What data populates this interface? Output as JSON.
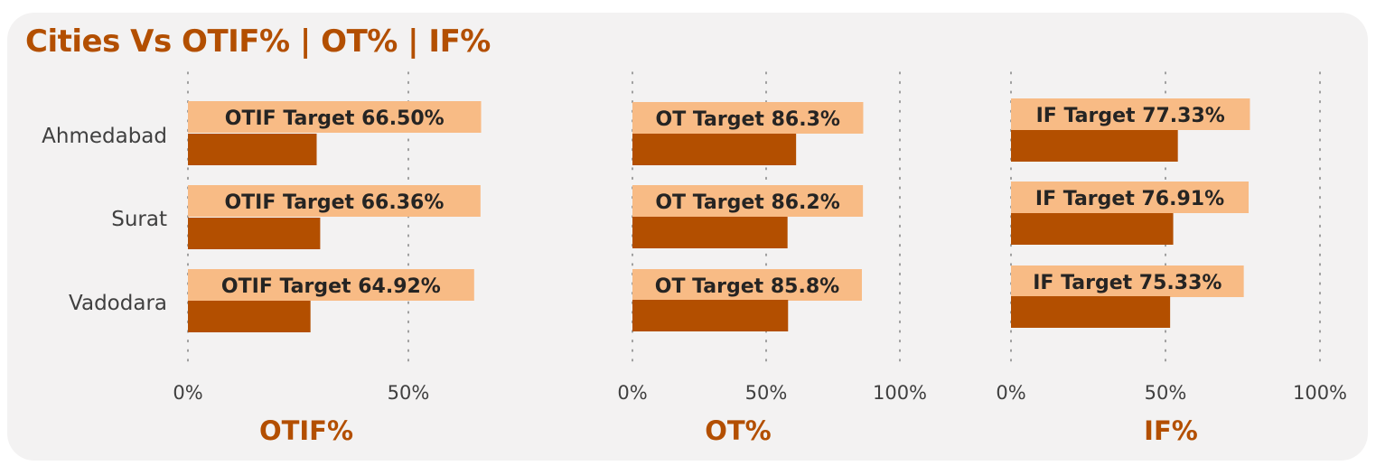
{
  "title": "Cities Vs OTIF% | OT% | IF%",
  "colors": {
    "accent": "#b34f00",
    "bar": "#b34f00",
    "target": "#f8bb85",
    "card": "#f3f2f2"
  },
  "chart_data": [
    {
      "type": "bar",
      "title": "OTIF%",
      "categories": [
        "Ahmedabad",
        "Surat",
        "Vadodara"
      ],
      "series": [
        {
          "name": "OTIF Target",
          "values": [
            66.5,
            66.36,
            64.92
          ],
          "labels": [
            "OTIF Target 66.50%",
            "OTIF Target 66.36%",
            "OTIF Target 64.92%"
          ]
        },
        {
          "name": "OTIF%",
          "values": [
            29.2,
            30.0,
            27.8
          ]
        }
      ],
      "xlim": [
        0,
        60
      ],
      "ticks": [
        "0%",
        "50%"
      ],
      "tick_values": [
        0,
        50
      ],
      "grid": true
    },
    {
      "type": "bar",
      "title": "OT%",
      "categories": [
        "Ahmedabad",
        "Surat",
        "Vadodara"
      ],
      "series": [
        {
          "name": "OT Target",
          "values": [
            86.3,
            86.2,
            85.8
          ],
          "labels": [
            "OT Target 86.3%",
            "OT Target 86.2%",
            "OT Target 85.8%"
          ]
        },
        {
          "name": "OT%",
          "values": [
            61.2,
            58.0,
            58.2
          ]
        }
      ],
      "xlim": [
        0,
        100
      ],
      "ticks": [
        "0%",
        "50%",
        "100%"
      ],
      "tick_values": [
        0,
        50,
        100
      ],
      "grid": true
    },
    {
      "type": "bar",
      "title": "IF%",
      "categories": [
        "Ahmedabad",
        "Surat",
        "Vadodara"
      ],
      "series": [
        {
          "name": "IF Target",
          "values": [
            77.33,
            76.91,
            75.33
          ],
          "labels": [
            "IF Target 77.33%",
            "IF Target 76.91%",
            "IF Target 75.33%"
          ]
        },
        {
          "name": "IF%",
          "values": [
            54.0,
            52.5,
            51.5
          ]
        }
      ],
      "xlim": [
        0,
        100
      ],
      "ticks": [
        "0%",
        "50%",
        "100%"
      ],
      "tick_values": [
        0,
        50,
        100
      ],
      "grid": true
    }
  ]
}
